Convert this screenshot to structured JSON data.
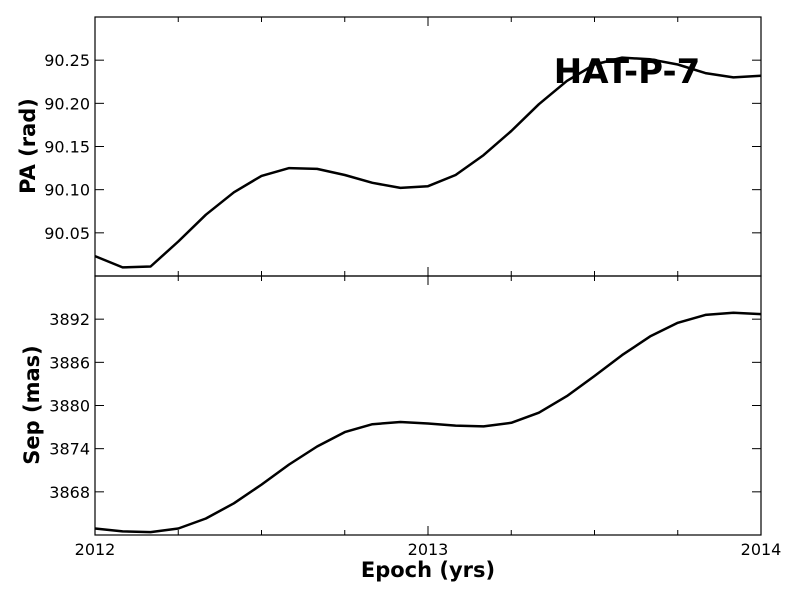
{
  "chart_data": [
    {
      "type": "line",
      "title": "",
      "annotation": "HAT-P-7",
      "xlabel": "",
      "ylabel": "PA (rad)",
      "xlim": [
        2012,
        2014
      ],
      "ylim": [
        90.0,
        90.3
      ],
      "yticks": [
        90.05,
        90.1,
        90.15,
        90.2,
        90.25
      ],
      "ytick_labels": [
        "90.05",
        "90.10",
        "90.15",
        "90.20",
        "90.25"
      ],
      "xtick_labels": [],
      "grid": false,
      "series": [
        {
          "x": [
            2012.0,
            2012.083,
            2012.167,
            2012.25,
            2012.333,
            2012.417,
            2012.5,
            2012.583,
            2012.667,
            2012.75,
            2012.833,
            2012.917,
            2013.0,
            2013.083,
            2013.167,
            2013.25,
            2013.333,
            2013.417,
            2013.5,
            2013.583,
            2013.667,
            2013.75,
            2013.833,
            2013.917,
            2014.0
          ],
          "y": [
            90.023,
            90.01,
            90.011,
            90.04,
            90.071,
            90.097,
            90.116,
            90.125,
            90.124,
            90.117,
            90.108,
            90.102,
            90.104,
            90.117,
            90.14,
            90.168,
            90.199,
            90.226,
            90.245,
            90.253,
            90.251,
            90.245,
            90.235,
            90.23,
            90.232
          ]
        }
      ]
    },
    {
      "type": "line",
      "title": "",
      "xlabel": "Epoch (yrs)",
      "ylabel": "Sep (mas)",
      "xlim": [
        2012,
        2014
      ],
      "ylim": [
        3862,
        3898
      ],
      "xticks": [
        2012,
        2013,
        2014
      ],
      "xtick_labels": [
        "2012",
        "2013",
        "2014"
      ],
      "yticks": [
        3868,
        3874,
        3880,
        3886,
        3892
      ],
      "ytick_labels": [
        "3868",
        "3874",
        "3880",
        "3886",
        "3892"
      ],
      "grid": false,
      "series": [
        {
          "x": [
            2012.0,
            2012.083,
            2012.167,
            2012.25,
            2012.333,
            2012.417,
            2012.5,
            2012.583,
            2012.667,
            2012.75,
            2012.833,
            2012.917,
            2013.0,
            2013.083,
            2013.167,
            2013.25,
            2013.333,
            2013.417,
            2013.5,
            2013.583,
            2013.667,
            2013.75,
            2013.833,
            2013.917,
            2014.0
          ],
          "y": [
            3862.9,
            3862.5,
            3862.4,
            3862.9,
            3864.3,
            3866.4,
            3869.0,
            3871.8,
            3874.3,
            3876.3,
            3877.4,
            3877.7,
            3877.5,
            3877.2,
            3877.1,
            3877.6,
            3879.0,
            3881.3,
            3884.1,
            3887.0,
            3889.6,
            3891.5,
            3892.6,
            3892.9,
            3892.7
          ]
        }
      ]
    }
  ]
}
